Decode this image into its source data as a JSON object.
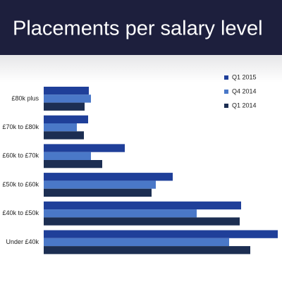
{
  "chart_data": {
    "type": "bar",
    "orientation": "horizontal",
    "title": "Placements per salary level",
    "categories": [
      "£80k plus",
      "£70k to £80k",
      "£60k to £70k",
      "£50k to £60k",
      "£40k to £50k",
      "Under £40k"
    ],
    "series": [
      {
        "name": "Q1 2015",
        "color": "#1f3f99",
        "values": [
          64,
          63,
          115,
          183,
          280,
          332
        ]
      },
      {
        "name": "Q4 2014",
        "color": "#4a78c8",
        "values": [
          67,
          47,
          67,
          159,
          217,
          263
        ]
      },
      {
        "name": "Q1 2014",
        "color": "#1c2e52",
        "values": [
          58,
          57,
          83,
          153,
          278,
          293
        ]
      }
    ],
    "legend": "top-right"
  }
}
